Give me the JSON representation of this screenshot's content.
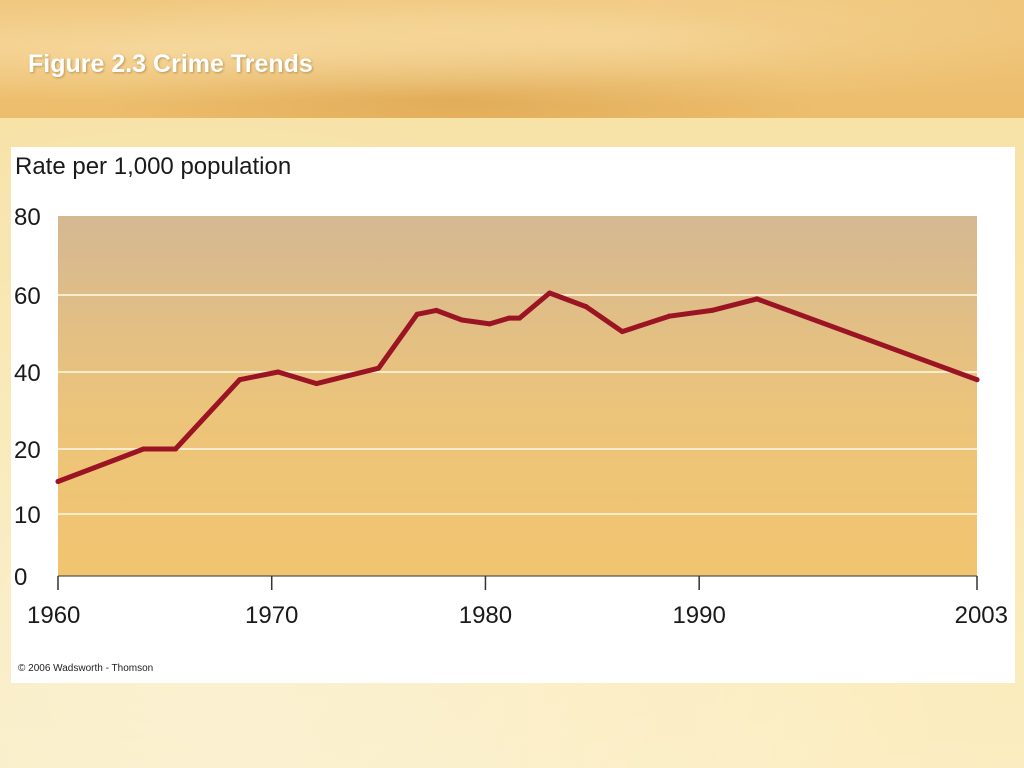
{
  "slide": {
    "title": "Figure 2.3 Crime Trends",
    "copyright": "© 2006 Wadsworth - Thomson"
  },
  "colors": {
    "line": "#9b1424",
    "plot_top": "#d5b892",
    "plot_bottom": "#f1c46f",
    "gridline": "#fbeccb",
    "text": "#1a1a1a"
  },
  "chart_data": {
    "type": "line",
    "title": "",
    "ylabel": "Rate per 1,000 population",
    "xlabel": "",
    "x_ticks": [
      "1960",
      "1970",
      "1980",
      "1990",
      "2003"
    ],
    "y_ticks": [
      "0",
      "10",
      "20",
      "40",
      "60",
      "80"
    ],
    "xlim": [
      1960,
      2003
    ],
    "ylim": [
      0,
      80
    ],
    "grid": true,
    "series": [
      {
        "x": [
          1960,
          1964,
          1965.5,
          1968.5,
          1970.3,
          1972.1,
          1975,
          1976.8,
          1977.7,
          1978.9,
          1980.2,
          1981.1,
          1981.6,
          1983,
          1984.7,
          1986.4,
          1988.6,
          1990.6,
          1992.7,
          2003
        ],
        "values": [
          15,
          20,
          20,
          38,
          40,
          37,
          41,
          55,
          56,
          53.5,
          52.5,
          54,
          54,
          60.5,
          57,
          50.5,
          54.5,
          56,
          59,
          38
        ]
      }
    ]
  }
}
